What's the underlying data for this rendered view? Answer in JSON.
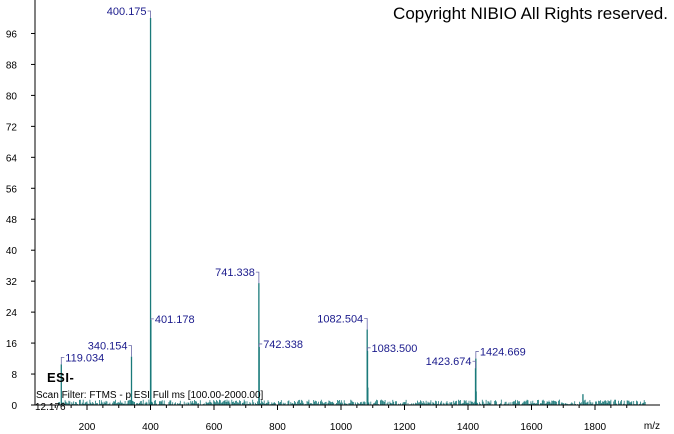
{
  "watermark": "Copyright NIBIO All Rights reserved.",
  "ion_mode": "ESI-",
  "scan_filter": "Scan Filter: FTMS - p ESI Full ms [100.00-2000.00]",
  "min_mz_label": "12.176",
  "chart_data": {
    "type": "bar",
    "title": "",
    "xlabel": "m/z",
    "ylabel": "",
    "xlim": [
      30,
      1980
    ],
    "ylim": [
      0,
      100
    ],
    "xticks": [
      200,
      400,
      600,
      800,
      1000,
      1200,
      1400,
      1600,
      1800
    ],
    "yticks": [
      0,
      8,
      16,
      24,
      32,
      40,
      48,
      56,
      64,
      72,
      80,
      88,
      96
    ],
    "grid": false,
    "colors": {
      "peaks": "#1a7a7a",
      "labels": "#1a1a8c",
      "axis": "#000000"
    },
    "peaks": [
      {
        "mz": 119.034,
        "intensity": 10.5,
        "label": "119.034"
      },
      {
        "mz": 340.154,
        "intensity": 12.5,
        "label": "340.154"
      },
      {
        "mz": 400.175,
        "intensity": 100,
        "label": "400.175"
      },
      {
        "mz": 401.178,
        "intensity": 22,
        "label": "401.178"
      },
      {
        "mz": 741.338,
        "intensity": 31.5,
        "label": "741.338"
      },
      {
        "mz": 742.338,
        "intensity": 15,
        "label": "742.338"
      },
      {
        "mz": 1082.504,
        "intensity": 19.5,
        "label": "1082.504"
      },
      {
        "mz": 1083.5,
        "intensity": 14,
        "label": "1083.500"
      },
      {
        "mz": 1423.674,
        "intensity": 9.5,
        "label": "1423.674"
      },
      {
        "mz": 1424.669,
        "intensity": 12,
        "label": "1424.669"
      },
      {
        "mz": 1762,
        "intensity": 2.8,
        "label": ""
      },
      {
        "mz": 1084.5,
        "intensity": 4.5,
        "label": ""
      },
      {
        "mz": 1425.7,
        "intensity": 3.5,
        "label": ""
      }
    ]
  }
}
